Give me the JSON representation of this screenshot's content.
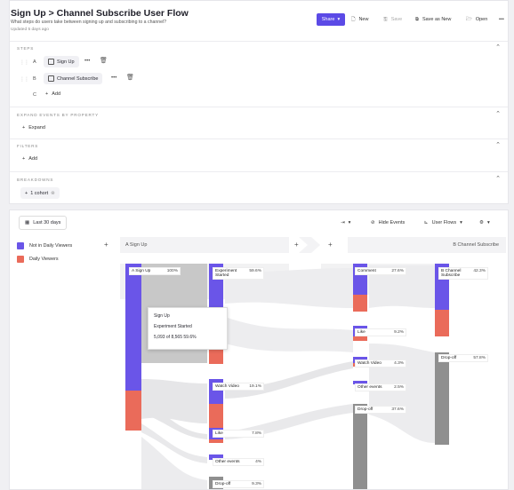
{
  "header": {
    "title": "Sign Up > Channel Subscribe User Flow",
    "description": "What steps do users take between signing up and subscribing to a channel?",
    "updated": "Updated 5 days ago"
  },
  "toolbar": {
    "share": "Share",
    "new": "New",
    "save": "Save",
    "save_as_new": "Save as New",
    "open": "Open",
    "more": "•••"
  },
  "steps": {
    "label": "STEPS",
    "items": [
      {
        "letter": "A",
        "event": "Sign Up"
      },
      {
        "letter": "B",
        "event": "Channel Subscribe"
      }
    ],
    "add_letter": "C",
    "add_label": "Add"
  },
  "expand": {
    "label": "EXPAND EVENTS BY PROPERTY",
    "button": "Expand"
  },
  "filters": {
    "label": "FILTERS",
    "button": "Add"
  },
  "breakdowns": {
    "label": "BREAKDOWNS",
    "button": "1 cohort"
  },
  "controls": {
    "date_range": "Last 30 days",
    "hide_events": "Hide Events",
    "user_flows": "User Flows"
  },
  "legend": [
    {
      "label": "Not in Daily Viewers",
      "color": "#6a55e8"
    },
    {
      "label": "Daily Viewers",
      "color": "#ea6b5a"
    }
  ],
  "columns": {
    "col1": "A  Sign Up",
    "col2": "B  Channel Subscribe"
  },
  "nodes": {
    "signup": {
      "name": "A  Sign Up",
      "pct": "100%"
    },
    "exp": {
      "name": "Experiment Started",
      "pct": "59.6%"
    },
    "watch": {
      "name": "Watch Video",
      "pct": "19.1%"
    },
    "like1": {
      "name": "Like",
      "pct": "7.8%"
    },
    "other1": {
      "name": "Other events",
      "pct": "4%"
    },
    "drop1": {
      "name": "Drop-off",
      "pct": "9.3%"
    },
    "comment": {
      "name": "Comment",
      "pct": "27.6%"
    },
    "like2": {
      "name": "Like",
      "pct": "9.2%"
    },
    "watch2": {
      "name": "Watch Video",
      "pct": "4.3%"
    },
    "other2": {
      "name": "Other events",
      "pct": "2.5%"
    },
    "drop2": {
      "name": "Drop-off",
      "pct": "37.6%"
    },
    "chansub": {
      "name": "B  Channel Subscribe",
      "pct": "42.3%"
    },
    "drop3": {
      "name": "Drop-off",
      "pct": "57.8%"
    }
  },
  "tooltip": {
    "line1": "Sign Up",
    "line2": "Experiment Started",
    "line3": "5,093 of 8,565  59.6%"
  },
  "colors": {
    "accent": "#5b4ae6",
    "purple": "#6a55e8",
    "orange": "#ea6b5a",
    "grey": "#8f8f8f"
  }
}
